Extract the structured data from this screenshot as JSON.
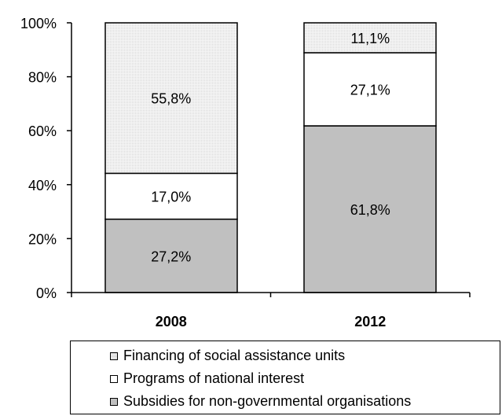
{
  "chart_data": {
    "type": "bar",
    "stacked": true,
    "percent": true,
    "categories": [
      "2008",
      "2012"
    ],
    "series": [
      {
        "name": "Subsidies for non-governmental organisations",
        "values": [
          27.2,
          61.8
        ],
        "labels": [
          "27,2%",
          "61,8%"
        ],
        "color": "#c0c0c0"
      },
      {
        "name": "Programs of national interest",
        "values": [
          17.0,
          27.1
        ],
        "labels": [
          "17,0%",
          "27,1%"
        ],
        "color": "#ffffff"
      },
      {
        "name": "Financing of social assistance units",
        "values": [
          55.8,
          11.1
        ],
        "labels": [
          "55,8%",
          "11,1%"
        ],
        "color": "#ececec"
      }
    ],
    "yticks": [
      "0%",
      "20%",
      "40%",
      "60%",
      "80%",
      "100%"
    ],
    "ylim": [
      0,
      100
    ],
    "grid": false,
    "legend_position": "bottom"
  },
  "legend": {
    "items": [
      {
        "label": "Financing of social assistance units",
        "color": "#ececec"
      },
      {
        "label": "Programs of national interest",
        "color": "#ffffff"
      },
      {
        "label": "Subsidies for non-governmental organisations",
        "color": "#c0c0c0"
      }
    ]
  }
}
